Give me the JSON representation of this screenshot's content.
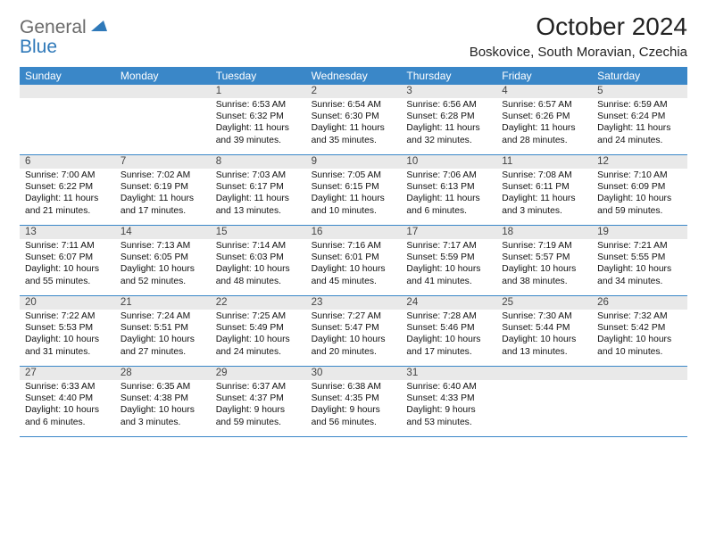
{
  "logo": {
    "word1": "General",
    "word2": "Blue"
  },
  "title": "October 2024",
  "location": "Boskovice, South Moravian, Czechia",
  "colors": {
    "header_bg": "#3a87c8",
    "header_text": "#ffffff",
    "daynum_bg": "#e9e9e9",
    "logo_gray": "#6a6a6a",
    "logo_blue": "#2f79b9"
  },
  "day_names": [
    "Sunday",
    "Monday",
    "Tuesday",
    "Wednesday",
    "Thursday",
    "Friday",
    "Saturday"
  ],
  "weeks": [
    [
      {
        "day": "",
        "sunrise": "",
        "sunset": "",
        "daylight": ""
      },
      {
        "day": "",
        "sunrise": "",
        "sunset": "",
        "daylight": ""
      },
      {
        "day": "1",
        "sunrise": "Sunrise: 6:53 AM",
        "sunset": "Sunset: 6:32 PM",
        "daylight": "Daylight: 11 hours and 39 minutes."
      },
      {
        "day": "2",
        "sunrise": "Sunrise: 6:54 AM",
        "sunset": "Sunset: 6:30 PM",
        "daylight": "Daylight: 11 hours and 35 minutes."
      },
      {
        "day": "3",
        "sunrise": "Sunrise: 6:56 AM",
        "sunset": "Sunset: 6:28 PM",
        "daylight": "Daylight: 11 hours and 32 minutes."
      },
      {
        "day": "4",
        "sunrise": "Sunrise: 6:57 AM",
        "sunset": "Sunset: 6:26 PM",
        "daylight": "Daylight: 11 hours and 28 minutes."
      },
      {
        "day": "5",
        "sunrise": "Sunrise: 6:59 AM",
        "sunset": "Sunset: 6:24 PM",
        "daylight": "Daylight: 11 hours and 24 minutes."
      }
    ],
    [
      {
        "day": "6",
        "sunrise": "Sunrise: 7:00 AM",
        "sunset": "Sunset: 6:22 PM",
        "daylight": "Daylight: 11 hours and 21 minutes."
      },
      {
        "day": "7",
        "sunrise": "Sunrise: 7:02 AM",
        "sunset": "Sunset: 6:19 PM",
        "daylight": "Daylight: 11 hours and 17 minutes."
      },
      {
        "day": "8",
        "sunrise": "Sunrise: 7:03 AM",
        "sunset": "Sunset: 6:17 PM",
        "daylight": "Daylight: 11 hours and 13 minutes."
      },
      {
        "day": "9",
        "sunrise": "Sunrise: 7:05 AM",
        "sunset": "Sunset: 6:15 PM",
        "daylight": "Daylight: 11 hours and 10 minutes."
      },
      {
        "day": "10",
        "sunrise": "Sunrise: 7:06 AM",
        "sunset": "Sunset: 6:13 PM",
        "daylight": "Daylight: 11 hours and 6 minutes."
      },
      {
        "day": "11",
        "sunrise": "Sunrise: 7:08 AM",
        "sunset": "Sunset: 6:11 PM",
        "daylight": "Daylight: 11 hours and 3 minutes."
      },
      {
        "day": "12",
        "sunrise": "Sunrise: 7:10 AM",
        "sunset": "Sunset: 6:09 PM",
        "daylight": "Daylight: 10 hours and 59 minutes."
      }
    ],
    [
      {
        "day": "13",
        "sunrise": "Sunrise: 7:11 AM",
        "sunset": "Sunset: 6:07 PM",
        "daylight": "Daylight: 10 hours and 55 minutes."
      },
      {
        "day": "14",
        "sunrise": "Sunrise: 7:13 AM",
        "sunset": "Sunset: 6:05 PM",
        "daylight": "Daylight: 10 hours and 52 minutes."
      },
      {
        "day": "15",
        "sunrise": "Sunrise: 7:14 AM",
        "sunset": "Sunset: 6:03 PM",
        "daylight": "Daylight: 10 hours and 48 minutes."
      },
      {
        "day": "16",
        "sunrise": "Sunrise: 7:16 AM",
        "sunset": "Sunset: 6:01 PM",
        "daylight": "Daylight: 10 hours and 45 minutes."
      },
      {
        "day": "17",
        "sunrise": "Sunrise: 7:17 AM",
        "sunset": "Sunset: 5:59 PM",
        "daylight": "Daylight: 10 hours and 41 minutes."
      },
      {
        "day": "18",
        "sunrise": "Sunrise: 7:19 AM",
        "sunset": "Sunset: 5:57 PM",
        "daylight": "Daylight: 10 hours and 38 minutes."
      },
      {
        "day": "19",
        "sunrise": "Sunrise: 7:21 AM",
        "sunset": "Sunset: 5:55 PM",
        "daylight": "Daylight: 10 hours and 34 minutes."
      }
    ],
    [
      {
        "day": "20",
        "sunrise": "Sunrise: 7:22 AM",
        "sunset": "Sunset: 5:53 PM",
        "daylight": "Daylight: 10 hours and 31 minutes."
      },
      {
        "day": "21",
        "sunrise": "Sunrise: 7:24 AM",
        "sunset": "Sunset: 5:51 PM",
        "daylight": "Daylight: 10 hours and 27 minutes."
      },
      {
        "day": "22",
        "sunrise": "Sunrise: 7:25 AM",
        "sunset": "Sunset: 5:49 PM",
        "daylight": "Daylight: 10 hours and 24 minutes."
      },
      {
        "day": "23",
        "sunrise": "Sunrise: 7:27 AM",
        "sunset": "Sunset: 5:47 PM",
        "daylight": "Daylight: 10 hours and 20 minutes."
      },
      {
        "day": "24",
        "sunrise": "Sunrise: 7:28 AM",
        "sunset": "Sunset: 5:46 PM",
        "daylight": "Daylight: 10 hours and 17 minutes."
      },
      {
        "day": "25",
        "sunrise": "Sunrise: 7:30 AM",
        "sunset": "Sunset: 5:44 PM",
        "daylight": "Daylight: 10 hours and 13 minutes."
      },
      {
        "day": "26",
        "sunrise": "Sunrise: 7:32 AM",
        "sunset": "Sunset: 5:42 PM",
        "daylight": "Daylight: 10 hours and 10 minutes."
      }
    ],
    [
      {
        "day": "27",
        "sunrise": "Sunrise: 6:33 AM",
        "sunset": "Sunset: 4:40 PM",
        "daylight": "Daylight: 10 hours and 6 minutes."
      },
      {
        "day": "28",
        "sunrise": "Sunrise: 6:35 AM",
        "sunset": "Sunset: 4:38 PM",
        "daylight": "Daylight: 10 hours and 3 minutes."
      },
      {
        "day": "29",
        "sunrise": "Sunrise: 6:37 AM",
        "sunset": "Sunset: 4:37 PM",
        "daylight": "Daylight: 9 hours and 59 minutes."
      },
      {
        "day": "30",
        "sunrise": "Sunrise: 6:38 AM",
        "sunset": "Sunset: 4:35 PM",
        "daylight": "Daylight: 9 hours and 56 minutes."
      },
      {
        "day": "31",
        "sunrise": "Sunrise: 6:40 AM",
        "sunset": "Sunset: 4:33 PM",
        "daylight": "Daylight: 9 hours and 53 minutes."
      },
      {
        "day": "",
        "sunrise": "",
        "sunset": "",
        "daylight": ""
      },
      {
        "day": "",
        "sunrise": "",
        "sunset": "",
        "daylight": ""
      }
    ]
  ]
}
